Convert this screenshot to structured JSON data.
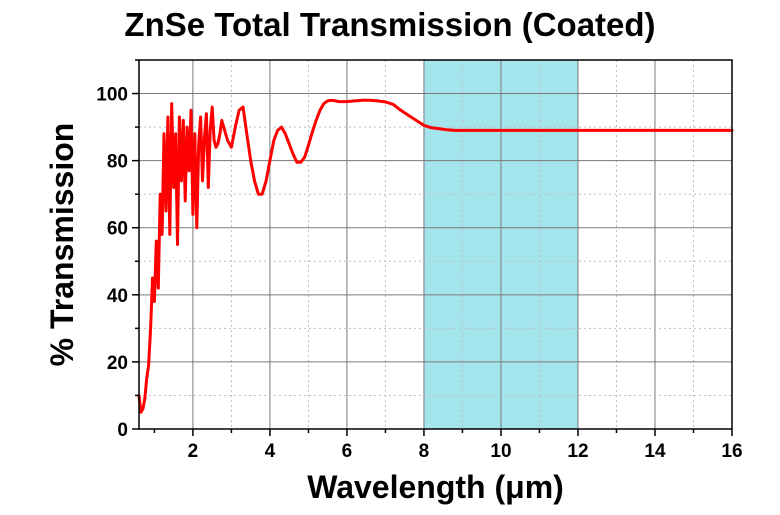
{
  "chart_data": {
    "type": "line",
    "title": "ZnSe Total Transmission (Coated)",
    "xlabel": "Wavelength (μm)",
    "ylabel": "% Transmission",
    "xlim": [
      0.6,
      16
    ],
    "ylim": [
      0,
      110
    ],
    "xticks": [
      2,
      4,
      6,
      8,
      10,
      12,
      14,
      16
    ],
    "yticks": [
      0,
      20,
      40,
      60,
      80,
      100
    ],
    "grid": true,
    "highlight_band": {
      "x_range": [
        8,
        12
      ],
      "color": "#a4e4ec"
    },
    "series": [
      {
        "color": "#ff0000",
        "x": [
          0.6,
          0.65,
          0.7,
          0.75,
          0.8,
          0.85,
          0.9,
          0.95,
          1.0,
          1.05,
          1.1,
          1.15,
          1.2,
          1.25,
          1.3,
          1.35,
          1.4,
          1.45,
          1.5,
          1.55,
          1.6,
          1.65,
          1.7,
          1.75,
          1.8,
          1.85,
          1.9,
          1.95,
          2.0,
          2.05,
          2.1,
          2.15,
          2.2,
          2.25,
          2.3,
          2.35,
          2.4,
          2.45,
          2.5,
          2.55,
          2.6,
          2.65,
          2.7,
          2.75,
          2.8,
          2.9,
          3.0,
          3.1,
          3.2,
          3.3,
          3.4,
          3.5,
          3.6,
          3.7,
          3.8,
          3.9,
          4.0,
          4.1,
          4.2,
          4.3,
          4.4,
          4.5,
          4.6,
          4.7,
          4.8,
          4.9,
          5.0,
          5.1,
          5.2,
          5.3,
          5.4,
          5.5,
          5.6,
          5.7,
          5.8,
          5.9,
          6.0,
          6.1,
          6.2,
          6.3,
          6.4,
          6.5,
          6.6,
          6.8,
          7.0,
          7.2,
          7.4,
          7.6,
          7.8,
          8.0,
          8.2,
          8.4,
          8.6,
          8.8,
          9.0,
          9.5,
          10.0,
          10.5,
          11.0,
          11.5,
          12.0,
          12.5,
          13.0,
          13.5,
          14.0,
          14.5,
          15.0,
          15.5,
          16.0
        ],
        "y": [
          10,
          5,
          6,
          9,
          15,
          19,
          30,
          45,
          38,
          56,
          42,
          70,
          58,
          88,
          65,
          93,
          58,
          97,
          72,
          88,
          55,
          93,
          74,
          92,
          68,
          90,
          77,
          95,
          64,
          88,
          60,
          85,
          93,
          74,
          87,
          94,
          72,
          89,
          96,
          86,
          84,
          85,
          88,
          92,
          90,
          86,
          84,
          90,
          95,
          96,
          88,
          80,
          74,
          70,
          70,
          74,
          80,
          86,
          89,
          90,
          88,
          85,
          82,
          79.5,
          79.5,
          81,
          84.5,
          88.5,
          92,
          95,
          97,
          97.8,
          98,
          97.8,
          97.6,
          97.6,
          97.6,
          97.7,
          97.8,
          97.9,
          98,
          98,
          98,
          97.8,
          97.5,
          96.8,
          95,
          93.5,
          92,
          90.5,
          89.8,
          89.5,
          89.2,
          89.0,
          89.0,
          89.0,
          89.0,
          89.0,
          89.0,
          89.0,
          89.0,
          89.0,
          89.0,
          89.0,
          89.0,
          89.0,
          89.0,
          89.0,
          89.0
        ]
      }
    ]
  }
}
